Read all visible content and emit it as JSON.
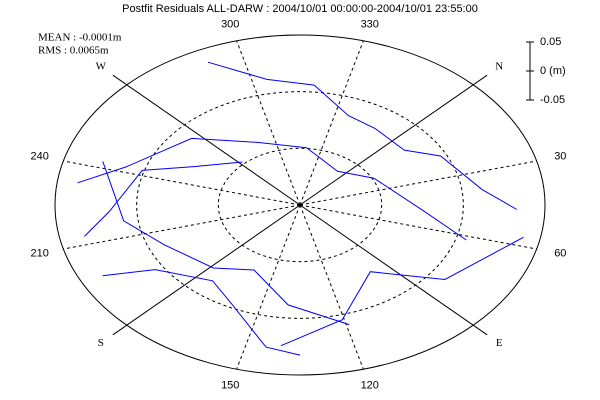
{
  "chart_data": {
    "type": "skyplot",
    "title": "Postfit Residuals ALL-DARW : 2004/10/01 00:00:00-2004/10/01 23:55:00",
    "stats": [
      "MEAN : -0.0001m",
      "RMS : 0.0065m"
    ],
    "az_ticks": [
      30,
      60,
      120,
      150,
      210,
      240,
      300,
      330
    ],
    "compass": [
      {
        "value": 0,
        "label": "N"
      },
      {
        "value": 90,
        "label": "E"
      },
      {
        "value": 180,
        "label": "S"
      },
      {
        "value": 270,
        "label": "W"
      }
    ],
    "el_rings": [
      0,
      30,
      60
    ],
    "scale_ticks": [
      0.05,
      {
        "value": 0,
        "label": "0 (m)"
      },
      -0.05
    ],
    "color": "#0000ff",
    "series": [
      {
        "az": [
          290,
          305,
          320,
          335,
          350,
          5,
          20,
          35,
          50
        ],
        "el": [
          10,
          20,
          30,
          38,
          42,
          40,
          33,
          22,
          10
        ],
        "values": [
          0.01,
          -0.008,
          0.012,
          -0.005,
          0.004,
          -0.01,
          0.006,
          -0.012,
          0.015
        ]
      },
      {
        "az": [
          230,
          245,
          265,
          290,
          320,
          350,
          20,
          45,
          65
        ],
        "el": [
          8,
          22,
          38,
          52,
          62,
          66,
          60,
          45,
          25
        ],
        "values": [
          0.015,
          -0.01,
          0.006,
          -0.004,
          0.008,
          -0.006,
          0.005,
          -0.009,
          0.012
        ]
      },
      {
        "az": [
          200,
          190,
          175,
          160,
          145,
          135
        ],
        "el": [
          10,
          25,
          40,
          30,
          18,
          5
        ],
        "values": [
          -0.012,
          0.01,
          -0.006,
          0.008,
          -0.014,
          0.018
        ]
      },
      {
        "az": [
          240,
          220,
          200,
          180,
          160,
          140,
          120
        ],
        "el": [
          15,
          25,
          35,
          45,
          50,
          40,
          20
        ],
        "values": [
          0.012,
          -0.009,
          0.007,
          -0.005,
          0.006,
          -0.01,
          0.014
        ]
      },
      {
        "az": [
          60,
          80,
          100,
          120,
          140
        ],
        "el": [
          5,
          25,
          45,
          30,
          10
        ],
        "values": [
          0.016,
          -0.007,
          0.005,
          -0.009,
          0.017
        ]
      },
      {
        "az": [
          270,
          255,
          240,
          225,
          210
        ],
        "el": [
          60,
          45,
          30,
          20,
          8
        ],
        "values": [
          0.005,
          -0.007,
          0.009,
          -0.011,
          0.015
        ]
      }
    ]
  }
}
